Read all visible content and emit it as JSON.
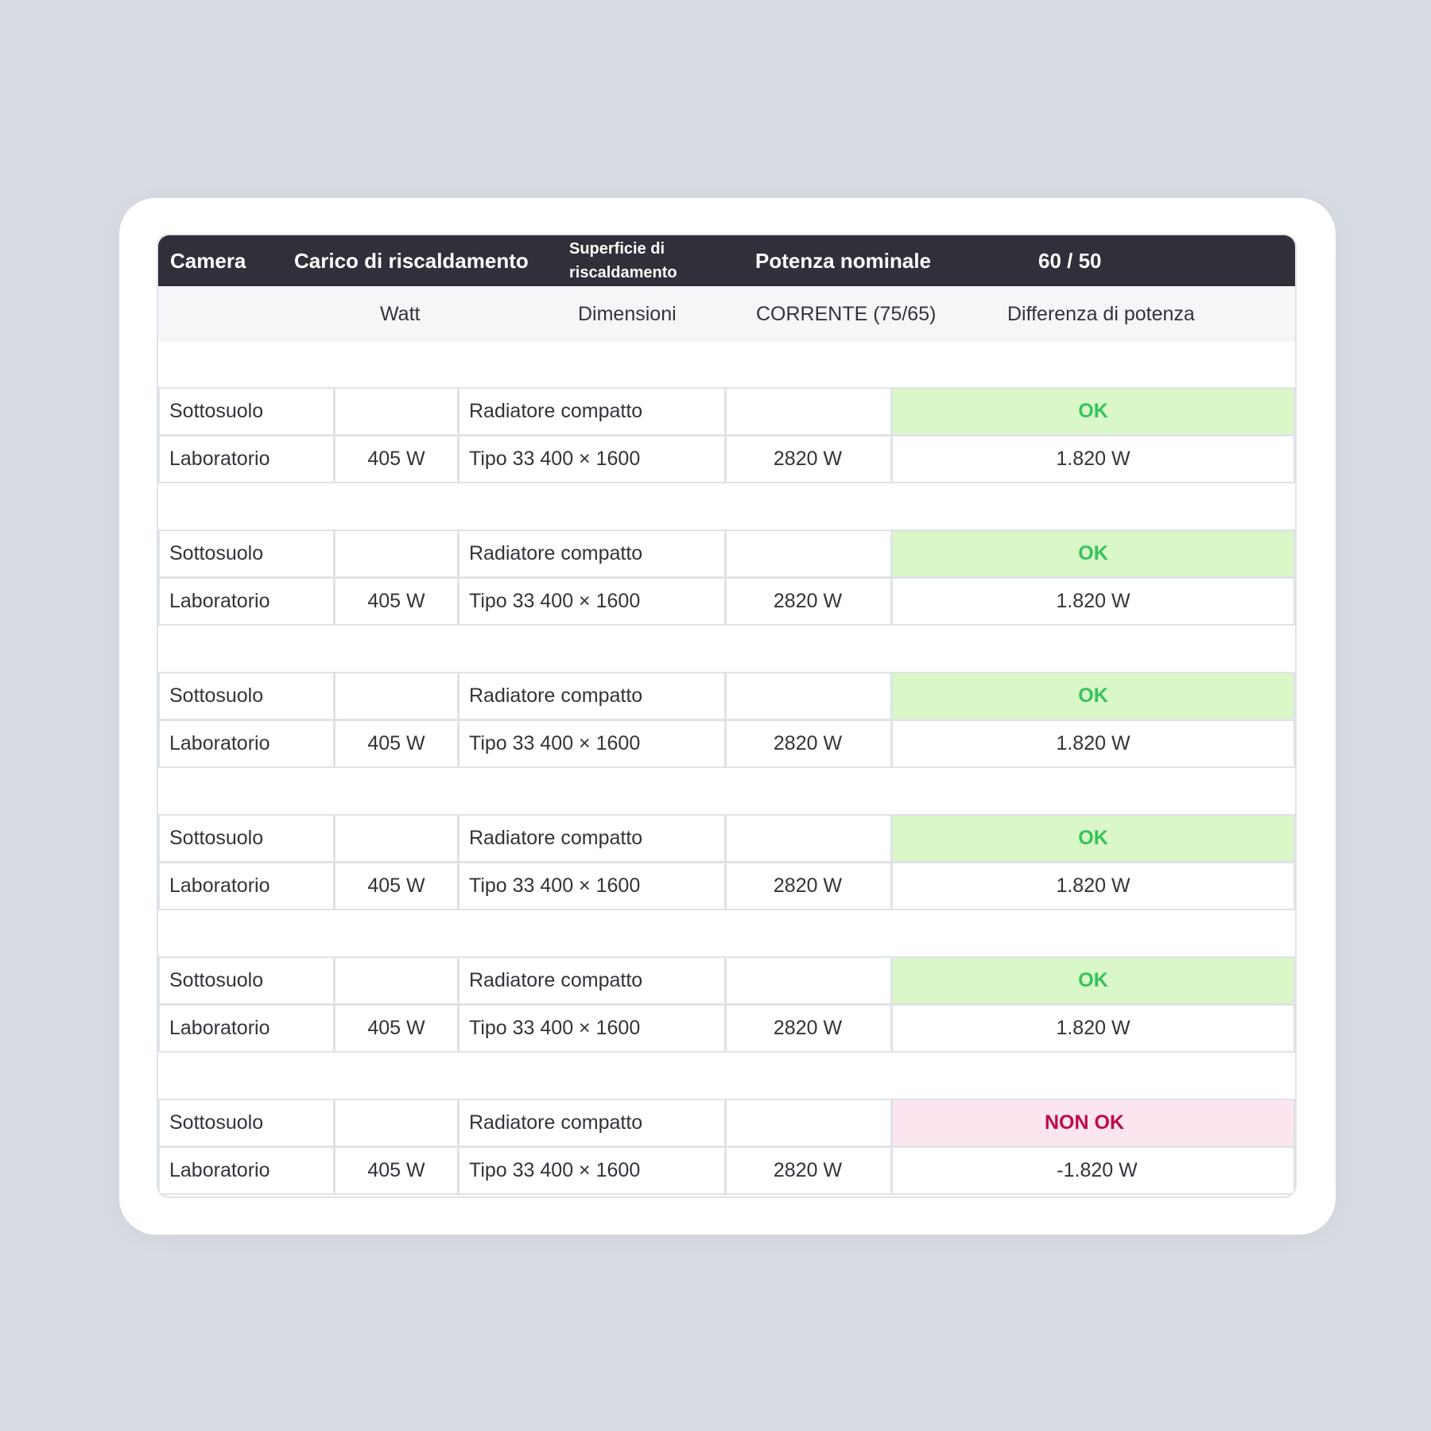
{
  "table": {
    "headers": {
      "camera": "Camera",
      "load": "Carico di riscaldamento",
      "surface": "Superficie di riscaldamento",
      "rated_power": "Potenza nominale",
      "ratio": "60 / 50"
    },
    "subheaders": {
      "watt": "Watt",
      "dimensions": "Dimensioni",
      "current": "CORRENTE (75/65)",
      "difference": "Differenza di potenza"
    },
    "groups": [
      {
        "room_top": "Sottosuolo",
        "room_bottom": "Laboratorio",
        "watt": "405 W",
        "surface_top": "Radiatore compatto",
        "surface_bottom": "Tipo 33 400 × 1600",
        "current": "2820 W",
        "status": "OK",
        "difference": "1.820 W"
      },
      {
        "room_top": "Sottosuolo",
        "room_bottom": "Laboratorio",
        "watt": "405 W",
        "surface_top": "Radiatore compatto",
        "surface_bottom": "Tipo 33 400 × 1600",
        "current": "2820 W",
        "status": "OK",
        "difference": "1.820 W"
      },
      {
        "room_top": "Sottosuolo",
        "room_bottom": "Laboratorio",
        "watt": "405 W",
        "surface_top": "Radiatore compatto",
        "surface_bottom": "Tipo 33 400 × 1600",
        "current": "2820 W",
        "status": "OK",
        "difference": "1.820 W"
      },
      {
        "room_top": "Sottosuolo",
        "room_bottom": "Laboratorio",
        "watt": "405 W",
        "surface_top": "Radiatore compatto",
        "surface_bottom": "Tipo 33 400 × 1600",
        "current": "2820 W",
        "status": "OK",
        "difference": "1.820 W"
      },
      {
        "room_top": "Sottosuolo",
        "room_bottom": "Laboratorio",
        "watt": "405 W",
        "surface_top": "Radiatore compatto",
        "surface_bottom": "Tipo 33 400 × 1600",
        "current": "2820 W",
        "status": "OK",
        "difference": "1.820 W"
      },
      {
        "room_top": "Sottosuolo",
        "room_bottom": "Laboratorio",
        "watt": "405 W",
        "surface_top": "Radiatore compatto",
        "surface_bottom": "Tipo 33 400 × 1600",
        "current": "2820 W",
        "status": "NON OK",
        "difference": "-1.820 W"
      }
    ]
  },
  "colors": {
    "header_bg": "#2f3039",
    "ok_bg": "#d9f7c7",
    "ok_text": "#35c45a",
    "bad_bg": "#fde5ef",
    "bad_text": "#bf0b4b"
  }
}
